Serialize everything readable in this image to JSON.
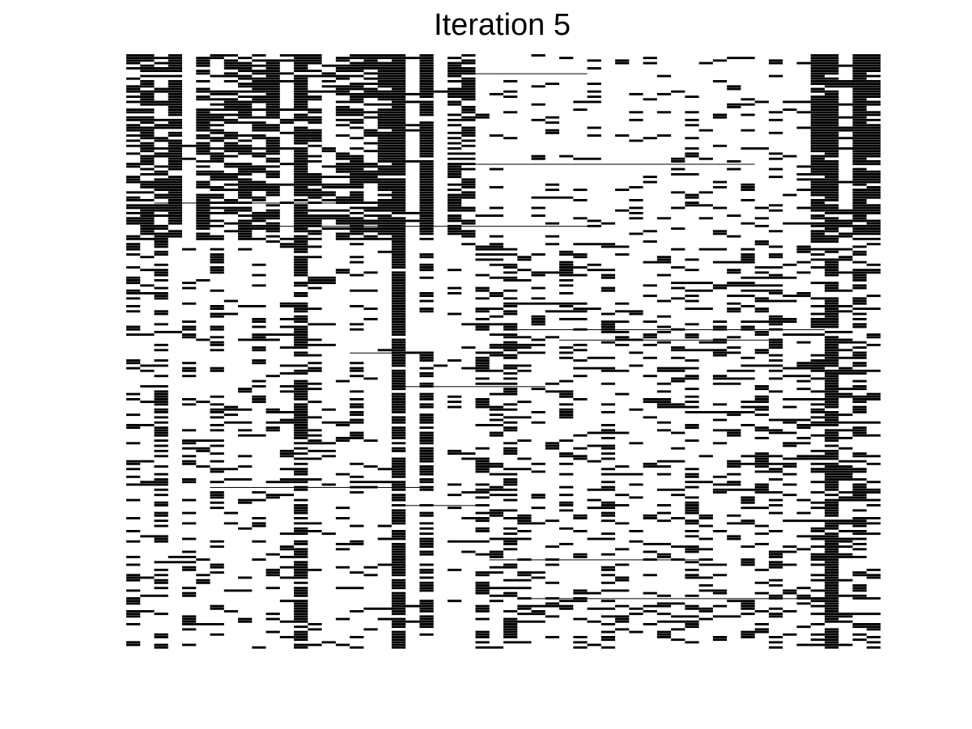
{
  "chart_data": {
    "type": "heatmap",
    "title": "Iteration 5",
    "xlabel": "",
    "ylabel": "",
    "n_cols": 54,
    "n_rows": 230,
    "grid": false,
    "legend": "none",
    "colors": {
      "on": "#000000",
      "off": "#ffffff"
    },
    "upper_block_rows": 72,
    "column_density_upper": [
      0.55,
      0.72,
      0.45,
      0.9,
      0.05,
      0.72,
      0.55,
      0.55,
      0.65,
      0.55,
      0.78,
      0.2,
      0.9,
      0.55,
      0.2,
      0.55,
      0.72,
      0.55,
      0.85,
      0.98,
      0.1,
      0.95,
      0.05,
      0.55,
      0.6,
      0.02,
      0.05,
      0.1,
      0.05,
      0.1,
      0.08,
      0.05,
      0.1,
      0.1,
      0.05,
      0.1,
      0.12,
      0.15,
      0.08,
      0.1,
      0.12,
      0.05,
      0.12,
      0.1,
      0.15,
      0.1,
      0.3,
      0.05,
      0.1,
      0.85,
      0.95,
      0.2,
      0.98,
      0.85
    ],
    "column_density_lower": [
      0.3,
      0.12,
      0.5,
      0.02,
      0.3,
      0.15,
      0.25,
      0.08,
      0.1,
      0.2,
      0.15,
      0.2,
      0.75,
      0.2,
      0.08,
      0.15,
      0.25,
      0.12,
      0.05,
      0.85,
      0.05,
      0.55,
      0.02,
      0.08,
      0.05,
      0.4,
      0.25,
      0.45,
      0.25,
      0.18,
      0.15,
      0.2,
      0.25,
      0.12,
      0.3,
      0.15,
      0.12,
      0.18,
      0.22,
      0.2,
      0.3,
      0.15,
      0.2,
      0.25,
      0.22,
      0.3,
      0.35,
      0.2,
      0.2,
      0.35,
      0.85,
      0.25,
      0.45,
      0.2
    ],
    "wide_row_streak_prob": 0.06,
    "seed": 5
  }
}
